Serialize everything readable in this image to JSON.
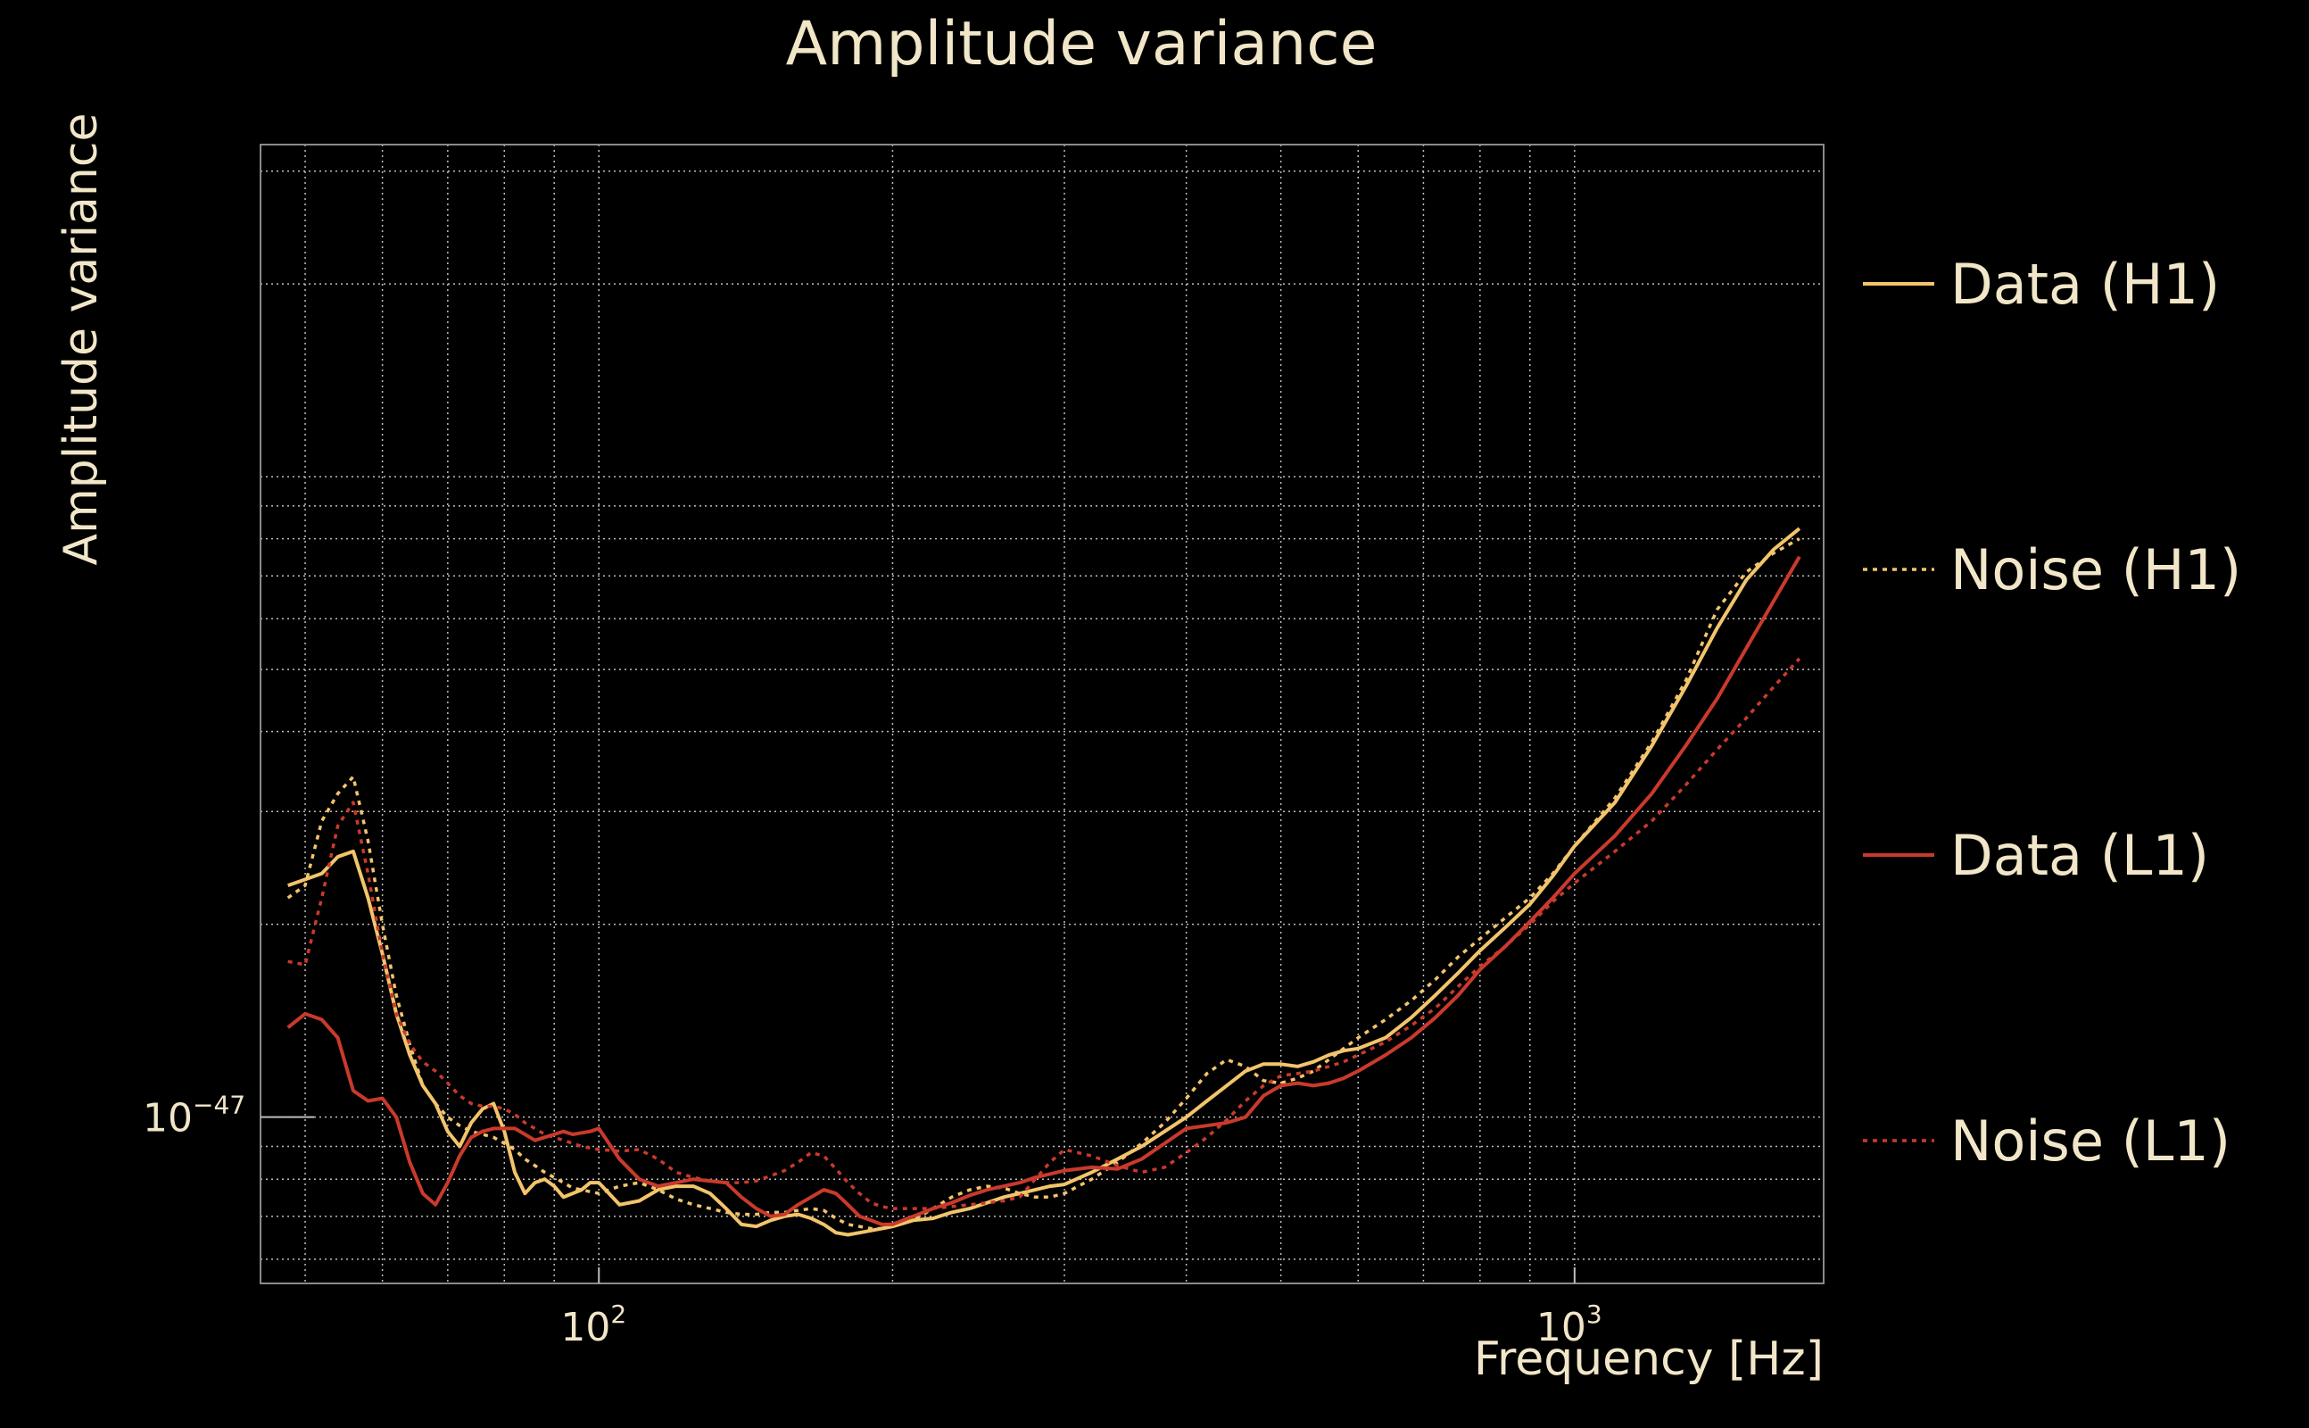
{
  "chart_data": {
    "type": "line",
    "title": "Amplitude variance",
    "xlabel": "Frequency [Hz]",
    "ylabel": "Amplitude variance",
    "xscale": "log",
    "yscale": "log",
    "xlim": [
      45,
      1800
    ],
    "ylim": [
      5.5e-48,
      3.3e-46
    ],
    "grid": true,
    "legend_position": "right",
    "x_ticks": [
      {
        "base": "10",
        "exp": "2",
        "value": 100
      },
      {
        "base": "10",
        "exp": "3",
        "value": 1000
      }
    ],
    "y_ticks": [
      {
        "base": "10",
        "exp": "−47",
        "value": 1e-47
      }
    ],
    "x": [
      48,
      50,
      52,
      54,
      56,
      58,
      60,
      62,
      64,
      66,
      68,
      70,
      72,
      74,
      76,
      78,
      80,
      82,
      84,
      86,
      88,
      90,
      92,
      94,
      96,
      98,
      100,
      105,
      110,
      115,
      120,
      125,
      130,
      135,
      140,
      145,
      150,
      155,
      160,
      165,
      170,
      175,
      180,
      185,
      190,
      195,
      200,
      210,
      220,
      230,
      240,
      250,
      260,
      270,
      280,
      290,
      300,
      320,
      340,
      360,
      380,
      400,
      420,
      440,
      460,
      480,
      500,
      520,
      540,
      560,
      580,
      600,
      640,
      680,
      720,
      760,
      800,
      850,
      900,
      950,
      1000,
      1100,
      1200,
      1300,
      1400,
      1500,
      1600,
      1700
    ],
    "series": [
      {
        "name": "Data (H1)",
        "color": "#f2c46c",
        "dash": "solid",
        "values": [
          2.3e-47,
          2.35e-47,
          2.4e-47,
          2.55e-47,
          2.6e-47,
          2.2e-47,
          1.8e-47,
          1.45e-47,
          1.25e-47,
          1.12e-47,
          1.05e-47,
          9.5e-48,
          9e-48,
          9.8e-48,
          1.03e-47,
          1.05e-47,
          9.5e-48,
          8.2e-48,
          7.6e-48,
          7.9e-48,
          8e-48,
          7.8e-48,
          7.5e-48,
          7.6e-48,
          7.7e-48,
          7.9e-48,
          7.9e-48,
          7.3e-48,
          7.4e-48,
          7.7e-48,
          7.8e-48,
          7.8e-48,
          7.6e-48,
          7.2e-48,
          6.8e-48,
          6.75e-48,
          6.9e-48,
          7e-48,
          7.05e-48,
          6.95e-48,
          6.8e-48,
          6.6e-48,
          6.55e-48,
          6.6e-48,
          6.65e-48,
          6.7e-48,
          6.75e-48,
          6.9e-48,
          6.95e-48,
          7.1e-48,
          7.2e-48,
          7.35e-48,
          7.5e-48,
          7.6e-48,
          7.7e-48,
          7.8e-48,
          7.85e-48,
          8.2e-48,
          8.6e-48,
          9e-48,
          9.5e-48,
          1e-47,
          1.06e-47,
          1.12e-47,
          1.18e-47,
          1.21e-47,
          1.21e-47,
          1.2e-47,
          1.22e-47,
          1.25e-47,
          1.27e-47,
          1.28e-47,
          1.33e-47,
          1.43e-47,
          1.55e-47,
          1.68e-47,
          1.82e-47,
          1.98e-47,
          2.15e-47,
          2.38e-47,
          2.65e-47,
          3.1e-47,
          3.8e-47,
          4.7e-47,
          5.8e-47,
          6.9e-47,
          7.7e-47,
          8.3e-47
        ]
      },
      {
        "name": "Noise (H1)",
        "color": "#f2c46c",
        "dash": "dotted",
        "values": [
          2.2e-47,
          2.3e-47,
          2.9e-47,
          3.2e-47,
          3.4e-47,
          2.7e-47,
          2e-47,
          1.55e-47,
          1.3e-47,
          1.12e-47,
          1.05e-47,
          1e-47,
          9.7e-48,
          9.5e-48,
          9.4e-48,
          9.3e-48,
          9.1e-48,
          8.9e-48,
          8.6e-48,
          8.4e-48,
          8.2e-48,
          8.05e-48,
          7.9e-48,
          7.75e-48,
          7.7e-48,
          7.65e-48,
          7.6e-48,
          7.8e-48,
          7.9e-48,
          7.7e-48,
          7.45e-48,
          7.3e-48,
          7.2e-48,
          7.1e-48,
          7.05e-48,
          7.05e-48,
          7.1e-48,
          7.1e-48,
          7.15e-48,
          7.2e-48,
          7.15e-48,
          6.95e-48,
          6.8e-48,
          6.75e-48,
          6.7e-48,
          6.7e-48,
          6.75e-48,
          6.9e-48,
          7.2e-48,
          7.5e-48,
          7.7e-48,
          7.8e-48,
          7.75e-48,
          7.6e-48,
          7.5e-48,
          7.5e-48,
          7.6e-48,
          8e-48,
          8.5e-48,
          9.1e-48,
          9.8e-48,
          1.07e-47,
          1.17e-47,
          1.23e-47,
          1.2e-47,
          1.14e-47,
          1.13e-47,
          1.15e-47,
          1.18e-47,
          1.23e-47,
          1.28e-47,
          1.33e-47,
          1.42e-47,
          1.52e-47,
          1.64e-47,
          1.78e-47,
          1.9e-47,
          2.05e-47,
          2.2e-47,
          2.4e-47,
          2.65e-47,
          3.15e-47,
          3.85e-47,
          4.8e-47,
          6.2e-47,
          7.1e-47,
          7.6e-47,
          8e-47
        ]
      },
      {
        "name": "Data (L1)",
        "color": "#c93a2c",
        "dash": "solid",
        "values": [
          1.38e-47,
          1.45e-47,
          1.42e-47,
          1.33e-47,
          1.1e-47,
          1.06e-47,
          1.07e-47,
          1e-47,
          8.5e-48,
          7.6e-48,
          7.3e-48,
          7.9e-48,
          8.7e-48,
          9.3e-48,
          9.5e-48,
          9.6e-48,
          9.6e-48,
          9.6e-48,
          9.4e-48,
          9.2e-48,
          9.3e-48,
          9.4e-48,
          9.5e-48,
          9.4e-48,
          9.45e-48,
          9.5e-48,
          9.6e-48,
          8.6e-48,
          8e-48,
          7.8e-48,
          7.9e-48,
          8e-48,
          7.95e-48,
          7.9e-48,
          7.5e-48,
          7.2e-48,
          7e-48,
          7.05e-48,
          7.3e-48,
          7.5e-48,
          7.7e-48,
          7.6e-48,
          7.3e-48,
          7e-48,
          6.9e-48,
          6.8e-48,
          6.8e-48,
          7e-48,
          7.2e-48,
          7.35e-48,
          7.55e-48,
          7.7e-48,
          7.8e-48,
          7.9e-48,
          8.05e-48,
          8.15e-48,
          8.25e-48,
          8.35e-48,
          8.3e-48,
          8.6e-48,
          9.1e-48,
          9.6e-48,
          9.7e-48,
          9.8e-48,
          1e-47,
          1.08e-47,
          1.12e-47,
          1.13e-47,
          1.12e-47,
          1.13e-47,
          1.15e-47,
          1.18e-47,
          1.25e-47,
          1.33e-47,
          1.43e-47,
          1.55e-47,
          1.7e-47,
          1.85e-47,
          2.02e-47,
          2.2e-47,
          2.4e-47,
          2.75e-47,
          3.2e-47,
          3.8e-47,
          4.5e-47,
          5.4e-47,
          6.4e-47,
          7.5e-47
        ]
      },
      {
        "name": "Noise (L1)",
        "color": "#c93a2c",
        "dash": "dotted",
        "values": [
          1.75e-47,
          1.73e-47,
          2.2e-47,
          2.85e-47,
          3.1e-47,
          2.4e-47,
          1.8e-47,
          1.45e-47,
          1.3e-47,
          1.22e-47,
          1.18e-47,
          1.13e-47,
          1.08e-47,
          1.05e-47,
          1.04e-47,
          1.04e-47,
          1.03e-47,
          1.01e-47,
          9.8e-48,
          9.6e-48,
          9.4e-48,
          9.3e-48,
          9.2e-48,
          9.1e-48,
          9e-48,
          8.95e-48,
          8.9e-48,
          8.85e-48,
          8.9e-48,
          8.6e-48,
          8.2e-48,
          8.05e-48,
          7.95e-48,
          7.9e-48,
          7.9e-48,
          7.95e-48,
          8.1e-48,
          8.25e-48,
          8.5e-48,
          8.8e-48,
          8.7e-48,
          8.3e-48,
          7.9e-48,
          7.6e-48,
          7.35e-48,
          7.25e-48,
          7.2e-48,
          7.2e-48,
          7.2e-48,
          7.25e-48,
          7.3e-48,
          7.35e-48,
          7.4e-48,
          7.5e-48,
          8e-48,
          8.5e-48,
          8.9e-48,
          8.7e-48,
          8.4e-48,
          8.2e-48,
          8.35e-48,
          8.8e-48,
          9.3e-48,
          9.9e-48,
          1.06e-47,
          1.12e-47,
          1.16e-47,
          1.17e-47,
          1.18e-47,
          1.2e-47,
          1.22e-47,
          1.25e-47,
          1.31e-47,
          1.39e-47,
          1.48e-47,
          1.6e-47,
          1.72e-47,
          1.85e-47,
          2e-47,
          2.17e-47,
          2.32e-47,
          2.6e-47,
          2.9e-47,
          3.3e-47,
          3.75e-47,
          4.2e-47,
          4.7e-47,
          5.2e-47
        ]
      }
    ]
  }
}
